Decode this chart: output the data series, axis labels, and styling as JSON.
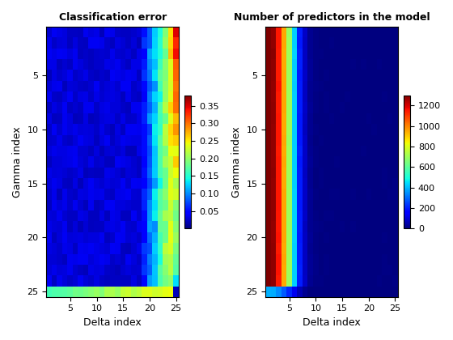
{
  "n_gamma": 25,
  "n_delta": 25,
  "title1": "Classification error",
  "title2": "Number of predictors in the model",
  "xlabel": "Delta index",
  "ylabel": "Gamma index",
  "cmap1": "jet",
  "cmap2": "jet",
  "clim1_min": 0.0,
  "clim1_max": 0.38,
  "clim2_min": 0,
  "clim2_max": 1300,
  "colorbar1_ticks": [
    0.05,
    0.1,
    0.15,
    0.2,
    0.25,
    0.3,
    0.35
  ],
  "colorbar2_ticks": [
    0,
    200,
    400,
    600,
    800,
    1000,
    1200
  ],
  "yticks": [
    5,
    10,
    15,
    20,
    25
  ],
  "xticks": [
    5,
    10,
    15,
    20,
    25
  ],
  "background_color": "#ffffff",
  "col_vals_Z2": [
    1300,
    1280,
    1150,
    950,
    700,
    430,
    200,
    80,
    25,
    8,
    3,
    2,
    1,
    1,
    1,
    1,
    1,
    1,
    1,
    1,
    1,
    1,
    1,
    1,
    1
  ]
}
